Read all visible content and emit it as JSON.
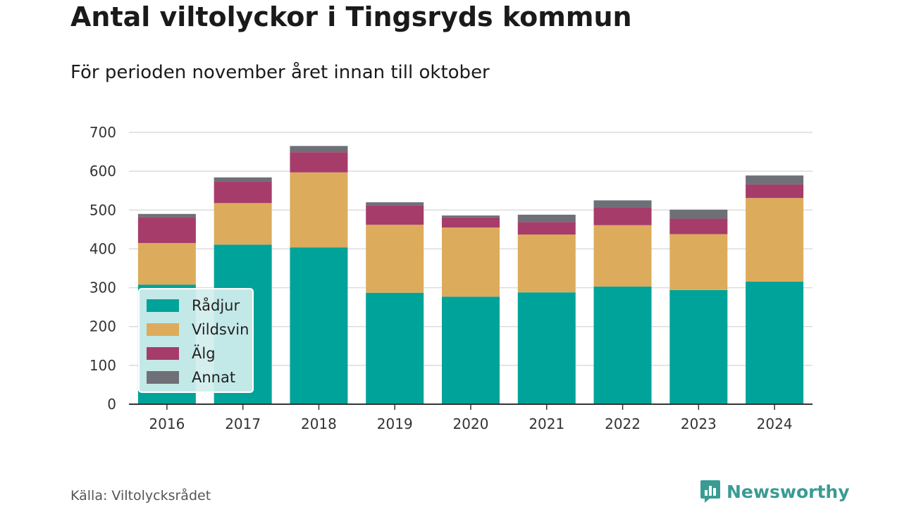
{
  "chart_data": {
    "type": "bar",
    "stacked": true,
    "title": "Antal viltolyckor i Tingsryds kommun",
    "subtitle": "För perioden november året innan till oktober",
    "categories": [
      "2016",
      "2017",
      "2018",
      "2019",
      "2020",
      "2021",
      "2022",
      "2023",
      "2024"
    ],
    "series": [
      {
        "name": "Rådjur",
        "color": "#00a399",
        "values": [
          308,
          411,
          404,
          287,
          277,
          288,
          303,
          294,
          316
        ]
      },
      {
        "name": "Vildsvin",
        "color": "#dcac5c",
        "values": [
          107,
          107,
          193,
          175,
          178,
          149,
          158,
          144,
          215
        ]
      },
      {
        "name": "Älg",
        "color": "#a63c6a",
        "values": [
          67,
          55,
          52,
          50,
          26,
          32,
          45,
          40,
          35
        ]
      },
      {
        "name": "Annat",
        "color": "#6f6f78",
        "values": [
          8,
          11,
          16,
          8,
          5,
          19,
          19,
          23,
          23
        ]
      }
    ],
    "ylim": [
      0,
      700
    ],
    "yticks": [
      0,
      100,
      200,
      300,
      400,
      500,
      600,
      700
    ],
    "grid": true,
    "legend_position": "bottom-left",
    "xlabel": "",
    "ylabel": ""
  },
  "source": "Källa: Viltolycksrådet",
  "brand": {
    "name": "Newsworthy",
    "color": "#3a9b94"
  }
}
